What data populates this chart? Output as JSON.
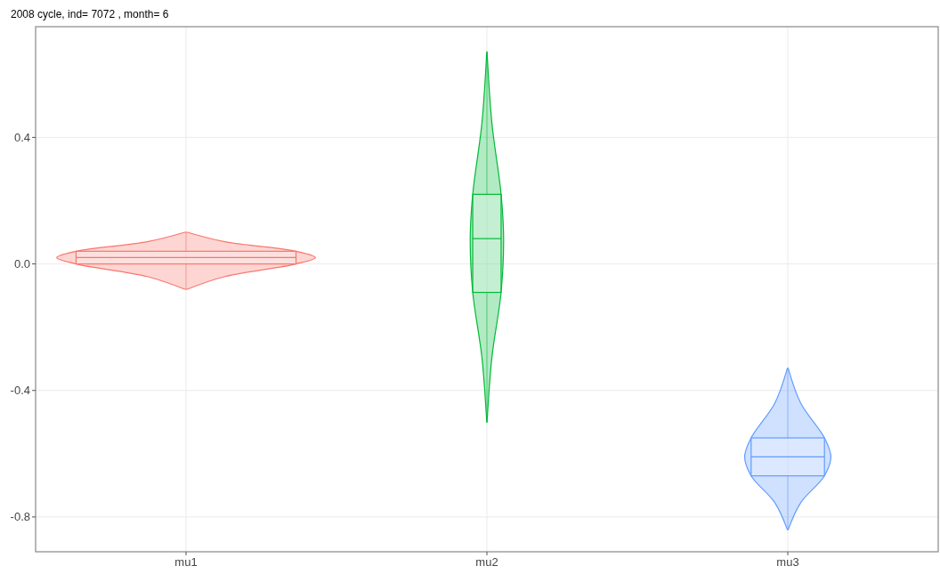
{
  "chart_data": {
    "type": "box",
    "title": "2008  cycle, ind= 7072 , month= 6",
    "categories": [
      "mu1",
      "mu2",
      "mu3"
    ],
    "boxes": [
      {
        "low": -0.08,
        "q1": 0.0,
        "median": 0.02,
        "q3": 0.04,
        "high": 0.1
      },
      {
        "low": -0.5,
        "q1": -0.09,
        "median": 0.08,
        "q3": 0.22,
        "high": 0.67
      },
      {
        "low": -0.84,
        "q1": -0.67,
        "median": -0.61,
        "q3": -0.55,
        "high": -0.33
      }
    ],
    "colors": [
      "#f8766d",
      "#00ba38",
      "#619cff"
    ],
    "ylim": [
      -0.91,
      0.75
    ],
    "yticks": [
      {
        "value": -0.8,
        "label": "-0.8"
      },
      {
        "value": -0.4,
        "label": "-0.4"
      },
      {
        "value": 0,
        "label": "0.0"
      },
      {
        "value": 0.4,
        "label": "0.4"
      }
    ],
    "grid": true
  }
}
